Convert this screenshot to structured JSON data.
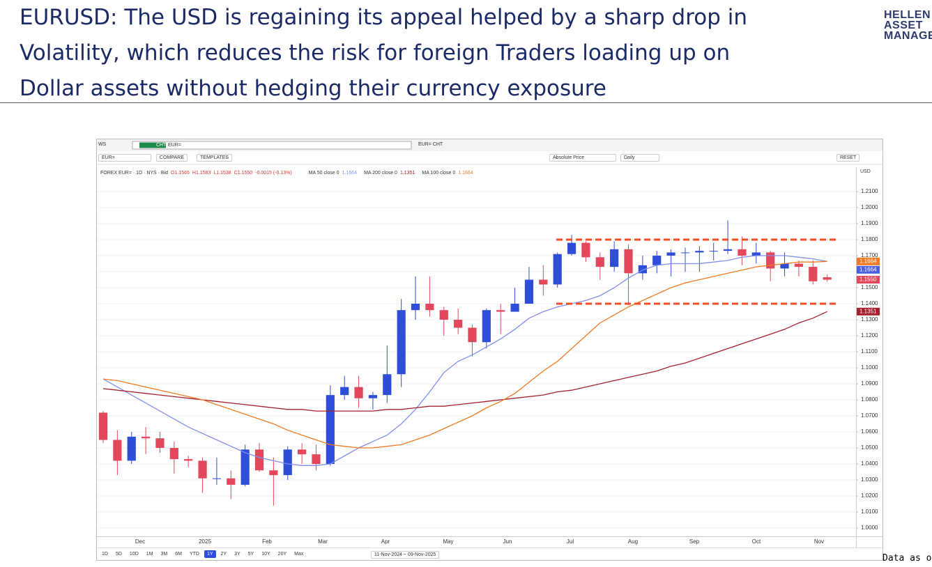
{
  "slide": {
    "title_lines": [
      "EURUSD: The USD is regaining its appeal helped by a sharp drop in",
      "Volatility, which reduces the risk for foreign Traders loading up on",
      "Dollar assets without hedging their currency exposure"
    ],
    "logo_lines": [
      "HELLEN",
      "ASSET",
      "MANAGE"
    ],
    "footnote": "Data as o"
  },
  "ui": {
    "workspace": "WS",
    "cht_badge": "CHT",
    "search": "EUR=",
    "tab": "EUR= CHT",
    "ric": "EUR=",
    "compare": "COMPARE",
    "templates": "TEMPLATES",
    "price_mode": "Absolute Price",
    "interval": "Daily",
    "reset": "RESET",
    "currency": "USD",
    "instrument": "FOREX EUR= · 1D · NYS · Bid",
    "ohlc": [
      "O1.1565",
      "H1.1583",
      "L1.1538",
      "C1.1550",
      "-0.0015 (-0.13%)"
    ],
    "ranges": [
      "1D",
      "5D",
      "10D",
      "1M",
      "3M",
      "6M",
      "YTD",
      "1Y",
      "2Y",
      "3Y",
      "5Y",
      "10Y",
      "20Y",
      "Max"
    ],
    "active_range": "1Y",
    "date_range": "11-Nov-2024 ~ 09-Nov-2025"
  },
  "chart_data": {
    "type": "candlestick",
    "x_labels": [
      "Dec",
      "2025",
      "Feb",
      "Mar",
      "Apr",
      "May",
      "Jun",
      "Jul",
      "Aug",
      "Sep",
      "Oct",
      "Nov"
    ],
    "open": [
      1.072,
      1.055,
      1.042,
      1.057,
      1.056,
      1.05,
      1.043,
      1.042,
      1.031,
      1.031,
      1.027,
      1.049,
      1.036,
      1.033,
      1.049,
      1.046,
      1.04,
      1.083,
      1.088,
      1.081,
      1.083,
      1.096,
      1.136,
      1.14,
      1.136,
      1.13,
      1.125,
      1.116,
      1.136,
      1.135,
      1.14,
      1.155,
      1.152,
      1.171,
      1.178,
      1.169,
      1.163,
      1.174,
      1.159,
      1.164,
      1.17,
      1.172,
      1.172,
      1.173,
      1.173,
      1.174,
      1.17,
      1.172,
      1.162,
      1.165,
      1.163,
      1.1565
    ],
    "high": [
      1.073,
      1.061,
      1.06,
      1.063,
      1.06,
      1.054,
      1.045,
      1.044,
      1.044,
      1.036,
      1.052,
      1.053,
      1.044,
      1.051,
      1.053,
      1.052,
      1.089,
      1.095,
      1.095,
      1.085,
      1.114,
      1.143,
      1.157,
      1.157,
      1.138,
      1.137,
      1.127,
      1.137,
      1.14,
      1.15,
      1.163,
      1.164,
      1.172,
      1.183,
      1.179,
      1.172,
      1.179,
      1.177,
      1.17,
      1.173,
      1.174,
      1.175,
      1.176,
      1.178,
      1.192,
      1.182,
      1.178,
      1.173,
      1.172,
      1.167,
      1.167,
      1.1583
    ],
    "low": [
      1.053,
      1.033,
      1.04,
      1.046,
      1.047,
      1.034,
      1.038,
      1.022,
      1.027,
      1.018,
      1.026,
      1.035,
      1.014,
      1.03,
      1.04,
      1.036,
      1.039,
      1.08,
      1.075,
      1.074,
      1.078,
      1.088,
      1.13,
      1.132,
      1.12,
      1.121,
      1.107,
      1.112,
      1.121,
      1.135,
      1.14,
      1.145,
      1.15,
      1.17,
      1.166,
      1.155,
      1.16,
      1.139,
      1.155,
      1.159,
      1.157,
      1.16,
      1.16,
      1.167,
      1.171,
      1.164,
      1.165,
      1.154,
      1.157,
      1.157,
      1.152,
      1.1538
    ],
    "close": [
      1.055,
      1.042,
      1.057,
      1.056,
      1.05,
      1.043,
      1.042,
      1.031,
      1.031,
      1.027,
      1.049,
      1.036,
      1.033,
      1.049,
      1.046,
      1.04,
      1.083,
      1.088,
      1.081,
      1.083,
      1.096,
      1.136,
      1.14,
      1.136,
      1.13,
      1.125,
      1.116,
      1.136,
      1.135,
      1.14,
      1.155,
      1.152,
      1.171,
      1.178,
      1.169,
      1.163,
      1.174,
      1.159,
      1.164,
      1.17,
      1.172,
      1.172,
      1.173,
      1.173,
      1.174,
      1.17,
      1.172,
      1.162,
      1.165,
      1.163,
      1.154,
      1.155
    ],
    "up_color": "#2f4ed8",
    "down_color": "#e2475c",
    "lines": [
      {
        "name": "MA 50 close 0",
        "value_label": "1.1664",
        "color": "#7f8ff0",
        "values": [
          1.093,
          1.088,
          1.083,
          1.078,
          1.073,
          1.068,
          1.063,
          1.059,
          1.055,
          1.051,
          1.047,
          1.044,
          1.042,
          1.04,
          1.039,
          1.039,
          1.04,
          1.045,
          1.05,
          1.054,
          1.058,
          1.065,
          1.074,
          1.085,
          1.097,
          1.104,
          1.108,
          1.113,
          1.118,
          1.124,
          1.131,
          1.135,
          1.138,
          1.14,
          1.142,
          1.145,
          1.15,
          1.156,
          1.161,
          1.164,
          1.165,
          1.165,
          1.165,
          1.166,
          1.167,
          1.169,
          1.17,
          1.17,
          1.17,
          1.169,
          1.168,
          1.1664
        ]
      },
      {
        "name": "MA 200 close 0",
        "value_label": "1.1351",
        "color": "#a3202c",
        "values": [
          1.087,
          1.086,
          1.085,
          1.084,
          1.083,
          1.082,
          1.081,
          1.08,
          1.079,
          1.078,
          1.077,
          1.076,
          1.075,
          1.074,
          1.074,
          1.073,
          1.073,
          1.073,
          1.073,
          1.073,
          1.074,
          1.074,
          1.075,
          1.076,
          1.076,
          1.077,
          1.078,
          1.079,
          1.08,
          1.081,
          1.082,
          1.083,
          1.085,
          1.086,
          1.088,
          1.09,
          1.092,
          1.094,
          1.096,
          1.098,
          1.101,
          1.103,
          1.106,
          1.109,
          1.112,
          1.115,
          1.118,
          1.121,
          1.124,
          1.128,
          1.131,
          1.1351
        ]
      },
      {
        "name": "MA 100 close 0",
        "value_label": "1.1664",
        "color": "#f07a22",
        "values": [
          1.093,
          1.092,
          1.09,
          1.088,
          1.086,
          1.084,
          1.082,
          1.08,
          1.077,
          1.074,
          1.071,
          1.068,
          1.065,
          1.061,
          1.058,
          1.055,
          1.052,
          1.051,
          1.05,
          1.05,
          1.051,
          1.052,
          1.055,
          1.058,
          1.062,
          1.066,
          1.07,
          1.075,
          1.079,
          1.084,
          1.091,
          1.098,
          1.104,
          1.112,
          1.12,
          1.128,
          1.133,
          1.138,
          1.142,
          1.146,
          1.15,
          1.153,
          1.155,
          1.157,
          1.159,
          1.161,
          1.163,
          1.164,
          1.165,
          1.166,
          1.166,
          1.1664
        ]
      }
    ],
    "levels": [
      1.18,
      1.14
    ],
    "level_color": "#f04e23",
    "price_tags": [
      {
        "value": 1.1664,
        "label": "1.1664",
        "color": "#f07a22"
      },
      {
        "value": 1.1664,
        "label": "1.1664",
        "color": "#4a5fe0"
      },
      {
        "value": 1.155,
        "label": "1.1550",
        "color": "#e2475c"
      },
      {
        "value": 1.1351,
        "label": "1.1351",
        "color": "#a3202c"
      }
    ],
    "ylim": [
      0.9948,
      1.2174
    ],
    "grid": true,
    "yticks": [
      {
        "value": 1.0,
        "label": "1.0000"
      },
      {
        "value": 1.01,
        "label": "1.0100"
      },
      {
        "value": 1.02,
        "label": "1.0200"
      },
      {
        "value": 1.03,
        "label": "1.0300"
      },
      {
        "value": 1.04,
        "label": "1.0400"
      },
      {
        "value": 1.05,
        "label": "1.0500"
      },
      {
        "value": 1.06,
        "label": "1.0600"
      },
      {
        "value": 1.07,
        "label": "1.0700"
      },
      {
        "value": 1.08,
        "label": "1.0800"
      },
      {
        "value": 1.09,
        "label": "1.0900"
      },
      {
        "value": 1.1,
        "label": "1.1000"
      },
      {
        "value": 1.11,
        "label": "1.1100"
      },
      {
        "value": 1.12,
        "label": "1.1200"
      },
      {
        "value": 1.13,
        "label": "1.1300"
      },
      {
        "value": 1.14,
        "label": "1.1400"
      },
      {
        "value": 1.15,
        "label": "1.1500"
      },
      {
        "value": 1.16,
        "label": "1.1600"
      },
      {
        "value": 1.17,
        "label": "1.1700"
      },
      {
        "value": 1.18,
        "label": "1.1800"
      },
      {
        "value": 1.19,
        "label": "1.1900"
      },
      {
        "value": 1.2,
        "label": "1.2000"
      },
      {
        "value": 1.21,
        "label": "1.2100"
      }
    ]
  }
}
